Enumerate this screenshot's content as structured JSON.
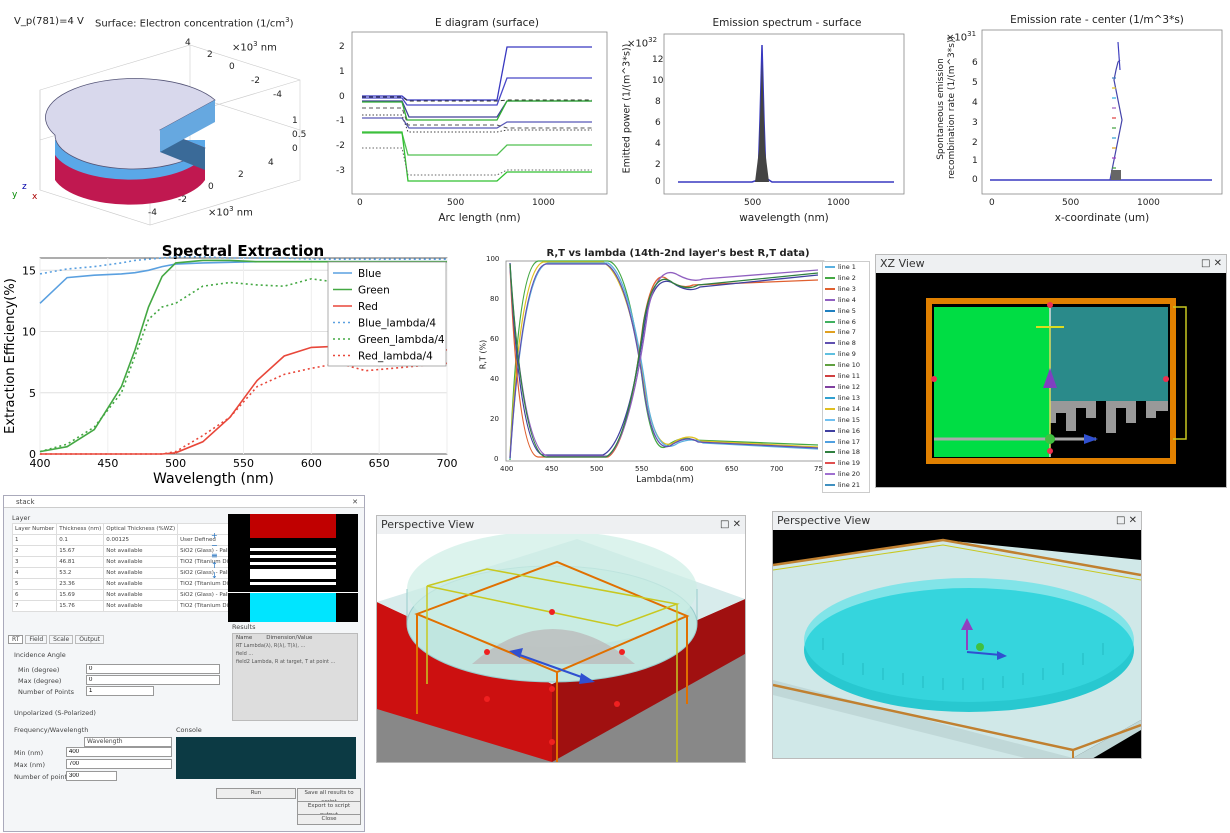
{
  "colors": {
    "blue": "#5aa0e0",
    "green": "#44a843",
    "red": "#e8473a",
    "cyan": "#00e5ff",
    "teal": "#2a8a8a",
    "bright_green": "#00dd44"
  },
  "pie": {
    "param": "V_p(781)=4 V",
    "surface": "Surface: Electron concentration (1/cm",
    "surface_sup": "3",
    "surface_close": ")",
    "unit_top": "×10",
    "unit_exp": "3",
    "unit_nm": " nm",
    "ticks_right": [
      "4",
      "2",
      "0",
      "-2",
      "-4"
    ],
    "ticks_z": [
      "1",
      "0.5",
      "0"
    ],
    "ticks_bottom": [
      "-4",
      "-2",
      "0",
      "2",
      "4"
    ],
    "axes": {
      "y": "y",
      "z": "z",
      "x": "x"
    }
  },
  "ediag": {
    "title": "E diagram (surface)",
    "xlabel": "Arc length (nm)",
    "xticks": [
      "0",
      "500",
      "1000"
    ],
    "yticks": [
      "2",
      "1",
      "0",
      "-1",
      "-2",
      "-3"
    ]
  },
  "emission": {
    "title": "Emission spectrum - surface",
    "exp": "×10",
    "exp_sup": "32",
    "ylabel": "Emitted power (1/(m^3*s))",
    "xlabel": "wavelength (nm)",
    "yticks": [
      "12",
      "10",
      "8",
      "6",
      "4",
      "2",
      "0"
    ],
    "xticks": [
      "500",
      "1000"
    ]
  },
  "rate": {
    "title": "Emission rate - center (1/m^3*s)",
    "exp": "×10",
    "exp_sup": "31",
    "ylabel1": "Spontaneous emission",
    "ylabel2": "recombination rate (1/(m^3*s))",
    "xlabel": "x-coordinate (um)",
    "yticks": [
      "6",
      "5",
      "4",
      "3",
      "2",
      "1",
      "0"
    ],
    "xticks": [
      "0",
      "500",
      "1000"
    ]
  },
  "chart_data": {
    "type": "line",
    "title": "Spectral Extraction",
    "xlabel": "Wavelength (nm)",
    "ylabel": "Extraction Efficiency(%)",
    "xlim": [
      400,
      700
    ],
    "ylim": [
      0,
      16
    ],
    "xticks": [
      "400",
      "450",
      "500",
      "550",
      "600",
      "650",
      "700"
    ],
    "yticks": [
      "15",
      "10",
      "5",
      "0"
    ],
    "x": [
      400,
      420,
      440,
      460,
      470,
      480,
      490,
      500,
      520,
      540,
      560,
      580,
      600,
      620,
      640,
      660,
      680,
      700
    ],
    "series": [
      {
        "name": "Blue",
        "values": [
          12.3,
          14.4,
          14.6,
          14.7,
          14.8,
          15.0,
          15.3,
          15.5,
          15.6,
          15.65,
          15.7,
          15.7,
          15.7,
          15.7,
          15.7,
          15.7,
          15.7,
          15.7
        ]
      },
      {
        "name": "Green",
        "values": [
          0.2,
          0.6,
          2.0,
          5.5,
          8.5,
          12.0,
          14.5,
          15.6,
          15.8,
          15.8,
          15.7,
          15.7,
          15.7,
          15.7,
          15.7,
          15.7,
          15.7,
          15.7
        ]
      },
      {
        "name": "Red",
        "values": [
          0,
          0,
          0,
          0,
          0,
          0,
          0,
          0.1,
          1.0,
          3.0,
          6.0,
          8.0,
          8.7,
          8.8,
          8.8,
          8.7,
          8.6,
          8.5
        ]
      },
      {
        "name": "Blue_lambda/4",
        "values": [
          14.7,
          15.1,
          15.3,
          15.6,
          15.8,
          15.9,
          16.0,
          16.1,
          16.1,
          16.0,
          16.0,
          16.0,
          15.9,
          15.9,
          15.9,
          15.9,
          15.9,
          15.9
        ]
      },
      {
        "name": "Green_lambda/4",
        "values": [
          0.2,
          0.8,
          2.2,
          5.0,
          8.0,
          11.0,
          12.0,
          12.3,
          13.7,
          14.0,
          13.8,
          13.7,
          14.3,
          14.0,
          13.6,
          13.9,
          13.6,
          13.8
        ]
      },
      {
        "name": "Red_lambda/4",
        "values": [
          0,
          0,
          0,
          0,
          0,
          0,
          0,
          0.2,
          1.5,
          3.0,
          5.5,
          6.5,
          7.0,
          7.4,
          6.8,
          7.0,
          7.2,
          7.4
        ]
      }
    ]
  },
  "rt": {
    "title": "R,T vs lambda (14th-2nd layer's best R,T data)",
    "xlabel": "Lambda(nm)",
    "ylabel": "R,T (%)",
    "xticks": [
      "400",
      "450",
      "500",
      "550",
      "600",
      "650",
      "700",
      "750"
    ],
    "yticks": [
      "100",
      "80",
      "60",
      "40",
      "20",
      "0"
    ],
    "legend": [
      "line 1",
      "line 2",
      "line 3",
      "line 4",
      "line 5",
      "line 6",
      "line 7",
      "line 8",
      "line 9",
      "line 10",
      "line 11",
      "line 12",
      "line 13",
      "line 14",
      "line 15",
      "line 16",
      "line 17",
      "line 18",
      "line 19",
      "line 20",
      "line 21"
    ],
    "legend_colors": [
      "#5ab0e0",
      "#44a843",
      "#e06030",
      "#9060c0",
      "#2080c0",
      "#40b060",
      "#e0a020",
      "#6050b0",
      "#60c0e0",
      "#60a040",
      "#d04040",
      "#8040a0",
      "#30a0d0",
      "#e0c020",
      "#70c0f0",
      "#4040a0",
      "#50a0e0",
      "#308040",
      "#e05050",
      "#a070d0",
      "#4090c0"
    ]
  },
  "xzview": {
    "title": "XZ View"
  },
  "pv1": {
    "title": "Perspective View"
  },
  "pv2": {
    "title": "Perspective View"
  },
  "stack": {
    "title": "stack",
    "layer_label": "Layer",
    "cols": [
      "Layer Number",
      "Thickness (nm)",
      "Optical Thickness (%WZ)",
      ""
    ],
    "rows": [
      [
        "1",
        "0.1",
        "0.00125",
        "User Defined"
      ],
      [
        "2",
        "15.67",
        "Not available",
        "SiO2 (Glass) - Palik"
      ],
      [
        "3",
        "46.81",
        "Not available",
        "TiO2 (Titanium Di"
      ],
      [
        "4",
        "53.2",
        "Not available",
        "SiO2 (Glass) - Palik"
      ],
      [
        "5",
        "23.36",
        "Not available",
        "TiO2 (Titanium Di"
      ],
      [
        "6",
        "15.69",
        "Not available",
        "SiO2 (Glass) - Palik"
      ],
      [
        "7",
        "15.76",
        "Not available",
        "TiO2 (Titanium Di"
      ]
    ],
    "tabs": [
      "RT",
      "Field",
      "Scale",
      "Output"
    ],
    "incidence": "Incidence Angle",
    "min_deg": "Min (degree)",
    "min_val": "0",
    "max_deg": "Max (degree)",
    "max_val": "0",
    "npts": "Number of Points",
    "npts_val": "1",
    "results": "Results",
    "res_cols": [
      "Name",
      "Dimension/Value"
    ],
    "res_rows": [
      [
        "RT",
        "Lambda(λ), R(λ), T(λ), ..."
      ],
      [
        "field",
        "..."
      ],
      [
        "field2",
        "Lambda, R at target, T at point ..."
      ]
    ],
    "pol": "Unpolarized (S-Polarized)",
    "freq": "Frequency/Wavelength",
    "freq_sel": "Wavelength",
    "min_nm": "Min (nm)",
    "min_nm_val": "400",
    "max_nm": "Max (nm)",
    "max_nm_val": "700",
    "npoints": "Number of points",
    "npoints_val": "300",
    "console": "Console",
    "run": "Run",
    "save": "Save all results to script",
    "export": "Export to script output",
    "close": "Close"
  }
}
